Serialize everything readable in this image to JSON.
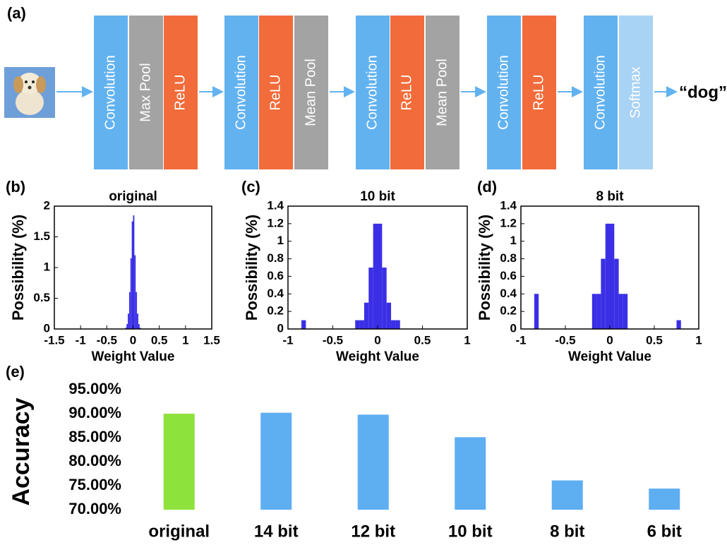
{
  "diagram": {
    "label": "(a)",
    "output": "“dog”",
    "blocks": [
      {
        "text": "Convolution",
        "color": "#62b2f0"
      },
      {
        "text": "Max Pool",
        "color": "#a3a3a3"
      },
      {
        "text": "ReLU",
        "color": "#f26b3a"
      },
      {
        "text": "Convolution",
        "color": "#62b2f0"
      },
      {
        "text": "ReLU",
        "color": "#f26b3a"
      },
      {
        "text": "Mean Pool",
        "color": "#a3a3a3"
      },
      {
        "text": "Convolution",
        "color": "#62b2f0"
      },
      {
        "text": "ReLU",
        "color": "#f26b3a"
      },
      {
        "text": "Mean Pool",
        "color": "#a3a3a3"
      },
      {
        "text": "Convolution",
        "color": "#62b2f0"
      },
      {
        "text": "ReLU",
        "color": "#f26b3a"
      },
      {
        "text": "Convolution",
        "color": "#62b2f0"
      },
      {
        "text": "Softmax",
        "color": "#a9d3f5"
      }
    ]
  },
  "chart_data": [
    {
      "type": "histogram",
      "label": "(b)",
      "title": "original",
      "x_label": "Weight Value",
      "y_label": "Possibility (%)",
      "color": "#3b2fe6",
      "bins": [
        -0.15,
        -0.125,
        -0.1,
        -0.075,
        -0.05,
        -0.025,
        0,
        0.025,
        0.05,
        0.075,
        0.1,
        0.125,
        0.15
      ],
      "values": [
        0.02,
        0.08,
        0.25,
        0.6,
        1.15,
        1.75,
        1.85,
        1.2,
        0.6,
        0.25,
        0.08,
        0.02
      ],
      "xlim": [
        -1.5,
        1.5
      ],
      "xticks": [
        -1.5,
        -1,
        -0.5,
        0,
        0.5,
        1,
        1.5
      ],
      "ylim": [
        0,
        2
      ],
      "yticks": [
        0,
        0.5,
        1,
        1.5,
        2
      ]
    },
    {
      "type": "histogram",
      "label": "(c)",
      "title": "10 bit",
      "x_label": "Weight Value",
      "y_label": "Possibility (%)",
      "color": "#3b2fe6",
      "bins": [
        -0.85,
        -0.8,
        -0.75,
        -0.7,
        -0.65,
        -0.6,
        -0.55,
        -0.5,
        -0.45,
        -0.4,
        -0.35,
        -0.3,
        -0.25,
        -0.2,
        -0.15,
        -0.1,
        -0.05,
        0,
        0.05,
        0.1,
        0.15,
        0.2,
        0.25,
        0.3,
        0.35,
        0.4,
        0.45,
        0.5,
        0.55,
        0.6,
        0.65,
        0.7,
        0.75,
        0.8,
        0.85
      ],
      "values": [
        0.1,
        0,
        0,
        0,
        0,
        0,
        0,
        0,
        0,
        0,
        0,
        0,
        0.1,
        0.1,
        0.3,
        0.7,
        1.2,
        1.2,
        0.7,
        0.3,
        0.1,
        0.1,
        0,
        0,
        0,
        0,
        0,
        0,
        0,
        0,
        0,
        0,
        0,
        0
      ],
      "xlim": [
        -1,
        1
      ],
      "xticks": [
        -1,
        -0.5,
        0,
        0.5,
        1
      ],
      "ylim": [
        0,
        1.4
      ],
      "yticks": [
        0,
        0.2,
        0.4,
        0.6,
        0.8,
        1,
        1.2,
        1.4
      ]
    },
    {
      "type": "histogram",
      "label": "(d)",
      "title": "8 bit",
      "x_label": "Weight Value",
      "y_label": "Possibility (%)",
      "color": "#3b2fe6",
      "bins": [
        -0.85,
        -0.8,
        -0.75,
        -0.7,
        -0.65,
        -0.6,
        -0.55,
        -0.5,
        -0.45,
        -0.4,
        -0.35,
        -0.3,
        -0.25,
        -0.2,
        -0.15,
        -0.1,
        -0.05,
        0,
        0.05,
        0.1,
        0.15,
        0.2,
        0.25,
        0.3,
        0.35,
        0.4,
        0.45,
        0.5,
        0.55,
        0.6,
        0.65,
        0.7,
        0.75,
        0.8,
        0.85
      ],
      "values": [
        0.4,
        0,
        0,
        0,
        0,
        0,
        0,
        0,
        0,
        0,
        0,
        0,
        0,
        0.4,
        0.4,
        0.8,
        1.2,
        1.2,
        0.8,
        0.4,
        0.4,
        0,
        0,
        0,
        0,
        0,
        0,
        0,
        0,
        0,
        0,
        0,
        0.1,
        0
      ],
      "xlim": [
        -1,
        1
      ],
      "xticks": [
        -1,
        -0.5,
        0,
        0.5,
        1
      ],
      "ylim": [
        0,
        1.4
      ],
      "yticks": [
        0,
        0.2,
        0.4,
        0.6,
        0.8,
        1,
        1.2,
        1.4
      ]
    },
    {
      "type": "bar",
      "label": "(e)",
      "y_label": "Accuracy",
      "categories": [
        "original",
        "14 bit",
        "12 bit",
        "10 bit",
        "8 bit",
        "6 bit"
      ],
      "values": [
        90,
        90.2,
        89.8,
        85.1,
        76.1,
        74.4
      ],
      "colors": [
        "#8ee23c",
        "#5eaef2",
        "#5eaef2",
        "#5eaef2",
        "#5eaef2",
        "#5eaef2"
      ],
      "ylim": [
        70,
        95
      ],
      "yticks": [
        {
          "value": 70,
          "label": "70.00%"
        },
        {
          "value": 75,
          "label": "75.00%"
        },
        {
          "value": 80,
          "label": "80.00%"
        },
        {
          "value": 85,
          "label": "85.00%"
        },
        {
          "value": 90,
          "label": "90.00%"
        },
        {
          "value": 95,
          "label": "95.00%"
        }
      ]
    }
  ]
}
